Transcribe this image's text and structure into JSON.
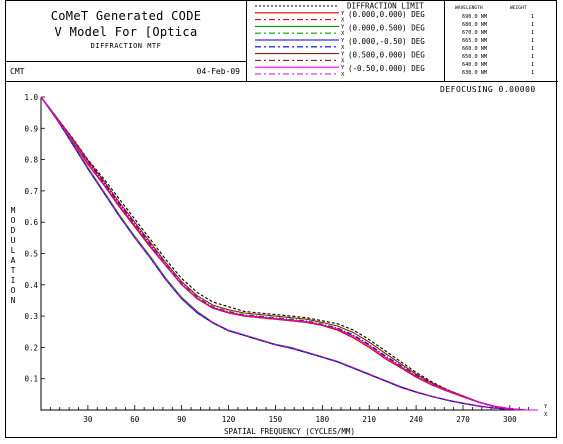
{
  "header": {
    "title_line1": "CoMeT Generated CODE",
    "title_line2": "V Model For [Optica",
    "subtitle": "DIFFRACTION MTF",
    "left_code": "CMT",
    "date": "04-Feb-09",
    "defocus_label": "DEFOCUSING",
    "defocus_value": "0.00000"
  },
  "wavelengths": {
    "col_wavelength": "WAVELENGTH",
    "col_weight": "WEIGHT",
    "rows": [
      {
        "wl": "690.0 NM",
        "w": "1"
      },
      {
        "wl": "680.0 NM",
        "w": "1"
      },
      {
        "wl": "670.0 NM",
        "w": "1"
      },
      {
        "wl": "665.0 NM",
        "w": "1"
      },
      {
        "wl": "660.0 NM",
        "w": "1"
      },
      {
        "wl": "650.0 NM",
        "w": "1"
      },
      {
        "wl": "640.0 NM",
        "w": "1"
      },
      {
        "wl": "630.0 NM",
        "w": "1"
      }
    ]
  },
  "legend": [
    {
      "label": "DIFFRACTION LIMIT",
      "color": "#000000",
      "dash": "2,2",
      "tag": ""
    },
    {
      "label": "(0.000,0.000) DEG",
      "color": "#e00000",
      "dash": "",
      "tag": "Y"
    },
    {
      "label": "",
      "color": "#e00000",
      "dash": "6,3,2,3",
      "tag": "X"
    },
    {
      "label": "(0.000,0.500) DEG",
      "color": "#00a000",
      "dash": "",
      "tag": "Y"
    },
    {
      "label": "",
      "color": "#00a000",
      "dash": "6,3,2,3",
      "tag": "X"
    },
    {
      "label": "(0.000,-0.50) DEG",
      "color": "#0000d0",
      "dash": "",
      "tag": "Y"
    },
    {
      "label": "",
      "color": "#0000d0",
      "dash": "6,3,2,3",
      "tag": "X"
    },
    {
      "label": "(0.500,0.000) DEG",
      "color": "#8b2500",
      "dash": "",
      "tag": "Y"
    },
    {
      "label": "",
      "color": "#8b2500",
      "dash": "6,3,2,3",
      "tag": "X"
    },
    {
      "label": "(-0.50,0.000) DEG",
      "color": "#e000e0",
      "dash": "",
      "tag": "Y"
    },
    {
      "label": "",
      "color": "#e000e0",
      "dash": "6,3,2,3",
      "tag": "X"
    }
  ],
  "chart_data": {
    "type": "line",
    "xlabel": "SPATIAL FREQUENCY (CYCLES/MM)",
    "ylabel": "MODULATION",
    "xlim": [
      0,
      318
    ],
    "ylim": [
      0,
      1.0
    ],
    "xticks": [
      30,
      60,
      90,
      120,
      150,
      180,
      210,
      240,
      270,
      300
    ],
    "yticks": [
      0.1,
      0.2,
      0.3,
      0.4,
      0.5,
      0.6,
      0.7,
      0.8,
      0.9,
      1.0
    ],
    "ytick_labels": [
      "0.1",
      "0.2",
      "0.3",
      "0.4",
      "0.5",
      "0.6",
      "0.7",
      "0.8",
      "0.9",
      "1.0"
    ],
    "x_axis_end_tags": [
      "Y",
      "X"
    ],
    "series": [
      {
        "name": "DIFFRACTION LIMIT",
        "color": "#000000",
        "dash": "3,2",
        "x": [
          0,
          10,
          20,
          30,
          40,
          50,
          60,
          70,
          80,
          90,
          100,
          110,
          120,
          130,
          140,
          150,
          160,
          170,
          180,
          190,
          200,
          210,
          220,
          230,
          240,
          250,
          260,
          270,
          280,
          290,
          300,
          310,
          318
        ],
        "y": [
          1.0,
          0.935,
          0.87,
          0.8,
          0.74,
          0.675,
          0.61,
          0.545,
          0.48,
          0.42,
          0.375,
          0.345,
          0.33,
          0.315,
          0.31,
          0.305,
          0.3,
          0.295,
          0.285,
          0.275,
          0.255,
          0.225,
          0.19,
          0.155,
          0.12,
          0.09,
          0.065,
          0.045,
          0.025,
          0.01,
          0.003,
          0.0,
          0.0
        ]
      },
      {
        "name": "(0.000,0.000) DEG Y",
        "color": "#e00000",
        "dash": "",
        "x": [
          0,
          10,
          20,
          30,
          40,
          50,
          60,
          70,
          80,
          90,
          100,
          110,
          120,
          130,
          140,
          150,
          160,
          170,
          180,
          190,
          200,
          210,
          220,
          230,
          240,
          250,
          260,
          270,
          280,
          290,
          300,
          310,
          318
        ],
        "y": [
          1.0,
          0.93,
          0.86,
          0.785,
          0.72,
          0.65,
          0.585,
          0.52,
          0.46,
          0.4,
          0.355,
          0.325,
          0.31,
          0.3,
          0.295,
          0.29,
          0.285,
          0.28,
          0.27,
          0.255,
          0.23,
          0.2,
          0.165,
          0.135,
          0.105,
          0.08,
          0.06,
          0.042,
          0.025,
          0.012,
          0.004,
          0.0,
          0.0
        ]
      },
      {
        "name": "(0.000,0.000) DEG X",
        "color": "#e00000",
        "dash": "5,2,1,2",
        "x": [
          0,
          10,
          20,
          30,
          40,
          50,
          60,
          70,
          80,
          90,
          100,
          110,
          120,
          130,
          140,
          150,
          160,
          170,
          180,
          190,
          200,
          210,
          220,
          230,
          240,
          250,
          260,
          270,
          280,
          290,
          300,
          310,
          318
        ],
        "y": [
          1.0,
          0.93,
          0.86,
          0.785,
          0.72,
          0.65,
          0.585,
          0.52,
          0.46,
          0.4,
          0.355,
          0.325,
          0.31,
          0.3,
          0.295,
          0.29,
          0.285,
          0.28,
          0.27,
          0.255,
          0.23,
          0.2,
          0.165,
          0.135,
          0.105,
          0.08,
          0.06,
          0.042,
          0.025,
          0.012,
          0.004,
          0.0,
          0.0
        ]
      },
      {
        "name": "(0.000,0.500) DEG Y",
        "color": "#00a000",
        "dash": "",
        "x": [
          0,
          10,
          20,
          30,
          40,
          50,
          60,
          70,
          80,
          90,
          100,
          110,
          120,
          130,
          140,
          150,
          160,
          170,
          180,
          190,
          200,
          210,
          220,
          230,
          240,
          250,
          260,
          270,
          280,
          290,
          300,
          310,
          318
        ],
        "y": [
          1.0,
          0.93,
          0.855,
          0.775,
          0.7,
          0.625,
          0.555,
          0.49,
          0.42,
          0.36,
          0.315,
          0.28,
          0.255,
          0.24,
          0.225,
          0.21,
          0.2,
          0.185,
          0.17,
          0.155,
          0.135,
          0.115,
          0.095,
          0.075,
          0.058,
          0.044,
          0.032,
          0.022,
          0.013,
          0.006,
          0.002,
          0.0,
          0.0
        ]
      },
      {
        "name": "(0.000,0.500) DEG X",
        "color": "#00a000",
        "dash": "5,2,1,2",
        "x": [
          0,
          10,
          20,
          30,
          40,
          50,
          60,
          70,
          80,
          90,
          100,
          110,
          120,
          130,
          140,
          150,
          160,
          170,
          180,
          190,
          200,
          210,
          220,
          230,
          240,
          250,
          260,
          270,
          280,
          290,
          300,
          310,
          318
        ],
        "y": [
          1.0,
          0.935,
          0.865,
          0.795,
          0.73,
          0.66,
          0.595,
          0.53,
          0.465,
          0.405,
          0.36,
          0.33,
          0.315,
          0.305,
          0.3,
          0.295,
          0.29,
          0.285,
          0.275,
          0.262,
          0.24,
          0.21,
          0.175,
          0.143,
          0.112,
          0.085,
          0.063,
          0.044,
          0.026,
          0.012,
          0.004,
          0.0,
          0.0
        ]
      },
      {
        "name": "(0.000,-0.50) DEG Y",
        "color": "#0000d0",
        "dash": "",
        "x": [
          0,
          10,
          20,
          30,
          40,
          50,
          60,
          70,
          80,
          90,
          100,
          110,
          120,
          130,
          140,
          150,
          160,
          170,
          180,
          190,
          200,
          210,
          220,
          230,
          240,
          250,
          260,
          270,
          280,
          290,
          300,
          310,
          318
        ],
        "y": [
          1.0,
          0.93,
          0.85,
          0.77,
          0.695,
          0.62,
          0.55,
          0.485,
          0.415,
          0.355,
          0.31,
          0.278,
          0.253,
          0.238,
          0.223,
          0.208,
          0.197,
          0.183,
          0.168,
          0.153,
          0.133,
          0.113,
          0.093,
          0.073,
          0.057,
          0.043,
          0.031,
          0.021,
          0.012,
          0.006,
          0.002,
          0.0,
          0.0
        ]
      },
      {
        "name": "(0.000,-0.50) DEG X",
        "color": "#0000d0",
        "dash": "5,2,1,2",
        "x": [
          0,
          10,
          20,
          30,
          40,
          50,
          60,
          70,
          80,
          90,
          100,
          110,
          120,
          130,
          140,
          150,
          160,
          170,
          180,
          190,
          200,
          210,
          220,
          230,
          240,
          250,
          260,
          270,
          280,
          290,
          300,
          310,
          318
        ],
        "y": [
          1.0,
          0.935,
          0.865,
          0.795,
          0.728,
          0.66,
          0.593,
          0.528,
          0.463,
          0.403,
          0.358,
          0.328,
          0.313,
          0.303,
          0.298,
          0.293,
          0.288,
          0.283,
          0.273,
          0.26,
          0.238,
          0.208,
          0.173,
          0.141,
          0.11,
          0.084,
          0.062,
          0.043,
          0.025,
          0.012,
          0.004,
          0.0,
          0.0
        ]
      },
      {
        "name": "(0.500,0.000) DEG Y",
        "color": "#8b2500",
        "dash": "",
        "x": [
          0,
          10,
          20,
          30,
          40,
          50,
          60,
          70,
          80,
          90,
          100,
          110,
          120,
          130,
          140,
          150,
          160,
          170,
          180,
          190,
          200,
          210,
          220,
          230,
          240,
          250,
          260,
          270,
          280,
          290,
          300,
          310,
          318
        ],
        "y": [
          1.0,
          0.935,
          0.868,
          0.798,
          0.733,
          0.665,
          0.6,
          0.535,
          0.47,
          0.41,
          0.365,
          0.335,
          0.32,
          0.31,
          0.305,
          0.3,
          0.295,
          0.29,
          0.28,
          0.268,
          0.247,
          0.217,
          0.182,
          0.148,
          0.115,
          0.087,
          0.064,
          0.045,
          0.026,
          0.012,
          0.004,
          0.0,
          0.0
        ]
      },
      {
        "name": "(0.500,0.000) DEG X",
        "color": "#8b2500",
        "dash": "5,2,1,2",
        "x": [
          0,
          10,
          20,
          30,
          40,
          50,
          60,
          70,
          80,
          90,
          100,
          110,
          120,
          130,
          140,
          150,
          160,
          170,
          180,
          190,
          200,
          210,
          220,
          230,
          240,
          250,
          260,
          270,
          280,
          290,
          300,
          310,
          318
        ],
        "y": [
          1.0,
          0.928,
          0.852,
          0.772,
          0.698,
          0.623,
          0.553,
          0.488,
          0.418,
          0.358,
          0.313,
          0.279,
          0.254,
          0.239,
          0.224,
          0.209,
          0.198,
          0.184,
          0.169,
          0.154,
          0.134,
          0.114,
          0.094,
          0.074,
          0.057,
          0.043,
          0.031,
          0.021,
          0.012,
          0.006,
          0.002,
          0.0,
          0.0
        ]
      },
      {
        "name": "(-0.50,0.000) DEG Y",
        "color": "#e000e0",
        "dash": "",
        "x": [
          0,
          10,
          20,
          30,
          40,
          50,
          60,
          70,
          80,
          90,
          100,
          110,
          120,
          130,
          140,
          150,
          160,
          170,
          180,
          190,
          200,
          210,
          220,
          230,
          240,
          250,
          260,
          270,
          280,
          290,
          300,
          310,
          318
        ],
        "y": [
          1.0,
          0.932,
          0.862,
          0.79,
          0.724,
          0.655,
          0.59,
          0.525,
          0.462,
          0.402,
          0.357,
          0.327,
          0.312,
          0.302,
          0.297,
          0.292,
          0.287,
          0.282,
          0.272,
          0.258,
          0.235,
          0.205,
          0.17,
          0.139,
          0.108,
          0.082,
          0.061,
          0.043,
          0.025,
          0.012,
          0.004,
          0.0,
          0.0
        ]
      },
      {
        "name": "(-0.50,0.000) DEG X",
        "color": "#e000e0",
        "dash": "5,2,1,2",
        "x": [
          0,
          10,
          20,
          30,
          40,
          50,
          60,
          70,
          80,
          90,
          100,
          110,
          120,
          130,
          140,
          150,
          160,
          170,
          180,
          190,
          200,
          210,
          220,
          230,
          240,
          250,
          260,
          270,
          280,
          290,
          300,
          310,
          318
        ],
        "y": [
          1.0,
          0.93,
          0.853,
          0.773,
          0.698,
          0.622,
          0.552,
          0.487,
          0.417,
          0.357,
          0.312,
          0.28,
          0.255,
          0.24,
          0.225,
          0.21,
          0.199,
          0.185,
          0.17,
          0.155,
          0.135,
          0.115,
          0.095,
          0.075,
          0.058,
          0.044,
          0.032,
          0.022,
          0.013,
          0.006,
          0.002,
          0.0,
          0.0
        ]
      }
    ]
  }
}
